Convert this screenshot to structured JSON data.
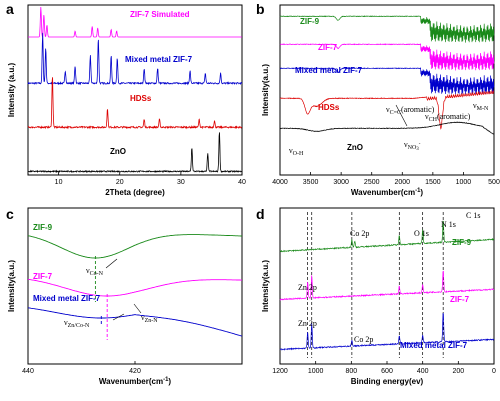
{
  "chart_data": [
    {
      "panel": "a",
      "type": "line",
      "xlabel": "2Theta (degree)",
      "ylabel": "Intensity (a.u.)",
      "xlim": [
        5,
        40
      ],
      "xticks": [
        "10",
        "20",
        "30",
        "40"
      ],
      "series": [
        {
          "name": "ZIF-7 Simulated",
          "color": "#ff00ff",
          "peaks": [
            [
              7.1,
              1.0
            ],
            [
              7.6,
              0.75
            ],
            [
              8.1,
              0.4
            ],
            [
              12.7,
              0.2
            ],
            [
              15.5,
              0.35
            ],
            [
              16.4,
              0.3
            ],
            [
              18.6,
              0.25
            ],
            [
              19.5,
              0.2
            ]
          ]
        },
        {
          "name": "Mixed metal ZIF-7",
          "color": "#0000cc",
          "peaks": [
            [
              7.4,
              1.0
            ],
            [
              7.9,
              0.7
            ],
            [
              11.1,
              0.25
            ],
            [
              12.7,
              0.35
            ],
            [
              15.2,
              0.55
            ],
            [
              16.5,
              0.9
            ],
            [
              18.6,
              0.55
            ],
            [
              19.6,
              0.5
            ],
            [
              24.0,
              0.3
            ],
            [
              26.2,
              0.3
            ],
            [
              31.5,
              0.25
            ],
            [
              34.0,
              0.2
            ],
            [
              36.5,
              0.2
            ]
          ]
        },
        {
          "name": "HDSs",
          "color": "#dd0000",
          "peaks": [
            [
              9.0,
              1.0
            ],
            [
              18.0,
              0.35
            ],
            [
              24.0,
              0.15
            ],
            [
              26.5,
              0.15
            ],
            [
              33.0,
              0.15
            ],
            [
              35.5,
              0.12
            ]
          ]
        },
        {
          "name": "ZnO",
          "color": "#000000",
          "peaks": [
            [
              31.8,
              0.6
            ],
            [
              34.4,
              0.45
            ],
            [
              36.3,
              1.0
            ]
          ]
        }
      ]
    },
    {
      "panel": "b",
      "type": "line",
      "xlabel": "Wavenumber(cm⁻¹)",
      "ylabel": "Intensity(a.u.)",
      "xlim": [
        4000,
        500
      ],
      "xticks": [
        "4000",
        "3500",
        "3000",
        "2500",
        "2000",
        "1500",
        "1000",
        "500"
      ],
      "series": [
        {
          "name": "ZIF-9",
          "color": "#1a8a1a"
        },
        {
          "name": "ZIF-7",
          "color": "#ff00ff"
        },
        {
          "name": "Mixed metal ZIF-7",
          "color": "#0000cc"
        },
        {
          "name": "HDSs",
          "color": "#dd0000"
        },
        {
          "name": "ZnO",
          "color": "#000000"
        }
      ],
      "annotations": [
        "νC=C(aromatic)",
        "νCH(aromatic)",
        "νM-N",
        "νO-H",
        "νNO₃⁻"
      ]
    },
    {
      "panel": "c",
      "type": "line",
      "xlabel": "Wavenumber(cm⁻¹)",
      "ylabel": "Intensity(a.u.)",
      "xlim": [
        440,
        400
      ],
      "xticks": [
        "440",
        "420"
      ],
      "series": [
        {
          "name": "ZIF-9",
          "color": "#1a8a1a",
          "min_at": 427.4
        },
        {
          "name": "ZIF-7",
          "color": "#ff00ff",
          "min_at": 425.2
        },
        {
          "name": "Mixed metal ZIF-7",
          "color": "#0000cc",
          "min_at": 426.3
        }
      ],
      "annotations": [
        "νCo-N",
        "νZn-N",
        "νZn/Co-N"
      ]
    },
    {
      "panel": "d",
      "type": "line",
      "xlabel": "Binding energy(ev)",
      "ylabel": "Intensity(a.u.)",
      "xlim": [
        1200,
        0
      ],
      "xticks": [
        "1200",
        "1000",
        "800",
        "600",
        "400",
        "200",
        "0"
      ],
      "series": [
        {
          "name": "ZIF-9",
          "color": "#1a8a1a"
        },
        {
          "name": "ZIF-7",
          "color": "#ff00ff"
        },
        {
          "name": "Mixed metal ZIF-7",
          "color": "#0000cc"
        }
      ],
      "reference_lines": [
        1045,
        1022,
        797,
        531,
        400,
        285
      ],
      "annotations": [
        "Co 2p",
        "O 1s",
        "N 1s",
        "C 1s",
        "Zn 2p",
        "Zn 2p",
        "Co 2p"
      ]
    }
  ],
  "labels": {
    "a": {
      "letter": "a",
      "xlabel": "2Theta (degree)",
      "ylabel": "Intensity (a.u.)",
      "ticks": [
        "10",
        "20",
        "30",
        "40"
      ],
      "s1": "ZIF-7 Simulated",
      "s2": "Mixed metal ZIF-7",
      "s3": "HDSs",
      "s4": "ZnO"
    },
    "b": {
      "letter": "b",
      "xlabel": "Wavenumber(cm",
      "xlabel_sup": "-1",
      "xlabel_end": ")",
      "ylabel": "Intensity(a.u.)",
      "ticks": [
        "4000",
        "3500",
        "3000",
        "2500",
        "2000",
        "1500",
        "1000",
        "500"
      ],
      "s1": "ZIF-9",
      "s2": "ZIF-7",
      "s3": "Mixed metal ZIF-7",
      "s4": "HDSs",
      "s5": "ZnO",
      "a1": "ν",
      "a1_sub": "C=C",
      "a1_rest": "(aromatic)",
      "a2": "ν",
      "a2_sub": "CH",
      "a2_rest": "(aromatic)",
      "a3": "ν",
      "a3_sub": "M-N",
      "a4": "ν",
      "a4_sub": "O-H",
      "a5": "ν",
      "a5_sub": "NO",
      "a5_sub2": "3",
      "a5_sup": "-"
    },
    "c": {
      "letter": "c",
      "xlabel": "Wavenumber(cm",
      "xlabel_sup": "-1",
      "xlabel_end": ")",
      "ylabel": "Intensity(a.u.)",
      "ticks": [
        "440",
        "420"
      ],
      "s1": "ZIF-9",
      "s2": "ZIF-7",
      "s3": "Mixed metal ZIF-7",
      "a1": "ν",
      "a1_sub": "Co-N",
      "a2": "ν",
      "a2_sub": "Zn-N",
      "a3": "ν",
      "a3_sub": "Zn/Co-N"
    },
    "d": {
      "letter": "d",
      "xlabel": "Binding energy(ev)",
      "ylabel": "Intensity(a.u.)",
      "ticks": [
        "1200",
        "1000",
        "800",
        "600",
        "400",
        "200",
        "0"
      ],
      "s1": "ZIF-9",
      "s2": "ZIF-7",
      "s3": "Mixed metal ZIF-7",
      "p1": "Co 2p",
      "p2": "O 1s",
      "p3": "N 1s",
      "p4": "C 1s",
      "p5": "Zn 2p",
      "p6": "Zn 2p",
      "p7": "Co 2p"
    }
  }
}
